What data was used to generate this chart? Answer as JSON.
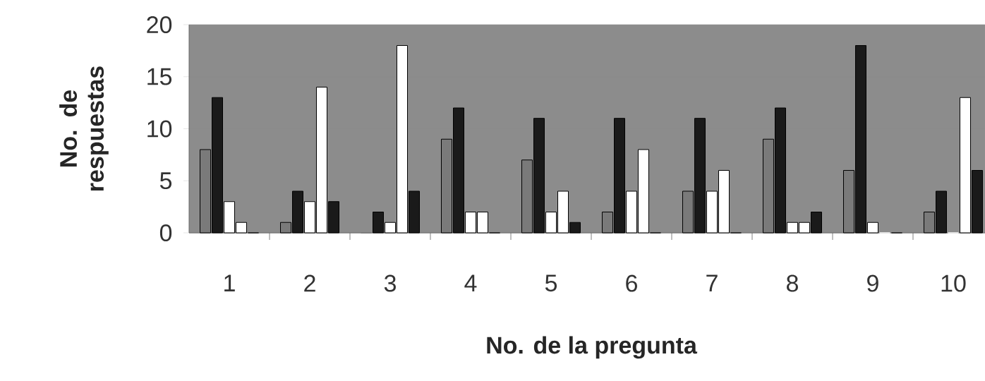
{
  "chart_data": {
    "type": "bar",
    "xlabel": "No. de la pregunta",
    "ylabel": "No. de respuestas",
    "categories": [
      "1",
      "2",
      "3",
      "4",
      "5",
      "6",
      "7",
      "8",
      "9",
      "10"
    ],
    "series": [
      {
        "color": "#7a7a7a",
        "values": [
          8,
          1,
          0,
          9,
          7,
          2,
          4,
          9,
          6,
          2
        ]
      },
      {
        "color": "#1a1a1a",
        "values": [
          13,
          4,
          2,
          12,
          11,
          11,
          11,
          12,
          18,
          4
        ]
      },
      {
        "color": "#ffffff",
        "values": [
          3,
          3,
          1,
          2,
          2,
          4,
          4,
          1,
          1,
          0
        ]
      },
      {
        "color": "#ffffff",
        "values": [
          1,
          14,
          18,
          2,
          4,
          8,
          6,
          1,
          0,
          13
        ]
      },
      {
        "color": "#1a1a1a",
        "values": [
          0,
          3,
          4,
          0,
          1,
          0,
          0,
          2,
          0,
          6
        ]
      }
    ],
    "ylim": [
      0,
      20
    ],
    "yticks": [
      0,
      5,
      10,
      15,
      20
    ],
    "grid": "y"
  }
}
